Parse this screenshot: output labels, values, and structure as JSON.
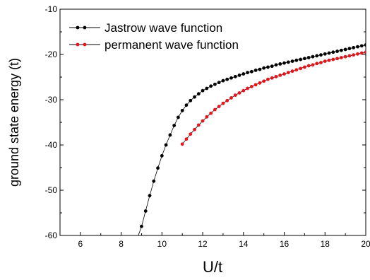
{
  "chart_data": {
    "type": "line",
    "xlabel": "U/t",
    "ylabel": "ground state energy (t)",
    "xlim": [
      5,
      20
    ],
    "ylim": [
      -60,
      -10
    ],
    "x_ticks": [
      6,
      8,
      10,
      12,
      14,
      16,
      18,
      20
    ],
    "y_ticks": [
      -60,
      -50,
      -40,
      -30,
      -20,
      -10
    ],
    "grid": false,
    "legend_position": "top-left",
    "series": [
      {
        "name": "Jastrow wave function",
        "color": "#000000",
        "marker": "circle",
        "points": [
          [
            8.8,
            -60.5
          ],
          [
            9.0,
            -58.0
          ],
          [
            9.2,
            -54.6
          ],
          [
            9.4,
            -51.2
          ],
          [
            9.6,
            -48.0
          ],
          [
            9.8,
            -45.1
          ],
          [
            10.0,
            -42.4
          ],
          [
            10.2,
            -40.0
          ],
          [
            10.4,
            -37.8
          ],
          [
            10.6,
            -35.7
          ],
          [
            10.8,
            -33.9
          ],
          [
            11.0,
            -32.4
          ],
          [
            11.2,
            -31.2
          ],
          [
            11.4,
            -30.2
          ],
          [
            11.6,
            -29.4
          ],
          [
            11.8,
            -28.7
          ],
          [
            12.0,
            -28.0
          ],
          [
            12.2,
            -27.5
          ],
          [
            12.4,
            -27.0
          ],
          [
            12.6,
            -26.6
          ],
          [
            12.8,
            -26.2
          ],
          [
            13.0,
            -25.8
          ],
          [
            13.2,
            -25.5
          ],
          [
            13.4,
            -25.2
          ],
          [
            13.6,
            -24.9
          ],
          [
            13.8,
            -24.6
          ],
          [
            14.0,
            -24.3
          ],
          [
            14.2,
            -24.0
          ],
          [
            14.4,
            -23.8
          ],
          [
            14.6,
            -23.5
          ],
          [
            14.8,
            -23.3
          ],
          [
            15.0,
            -23.0
          ],
          [
            15.2,
            -22.8
          ],
          [
            15.4,
            -22.6
          ],
          [
            15.6,
            -22.3
          ],
          [
            15.8,
            -22.1
          ],
          [
            16.0,
            -21.9
          ],
          [
            16.2,
            -21.7
          ],
          [
            16.4,
            -21.5
          ],
          [
            16.6,
            -21.3
          ],
          [
            16.8,
            -21.1
          ],
          [
            17.0,
            -20.9
          ],
          [
            17.2,
            -20.7
          ],
          [
            17.4,
            -20.5
          ],
          [
            17.6,
            -20.3
          ],
          [
            17.8,
            -20.1
          ],
          [
            18.0,
            -19.9
          ],
          [
            18.2,
            -19.7
          ],
          [
            18.4,
            -19.5
          ],
          [
            18.6,
            -19.3
          ],
          [
            18.8,
            -19.1
          ],
          [
            19.0,
            -18.9
          ],
          [
            19.2,
            -18.7
          ],
          [
            19.4,
            -18.5
          ],
          [
            19.6,
            -18.3
          ],
          [
            19.8,
            -18.1
          ],
          [
            20.0,
            -17.9
          ]
        ]
      },
      {
        "name": "permanent wave function",
        "color": "#e8141a",
        "marker": "circle",
        "points": [
          [
            11.0,
            -39.8
          ],
          [
            11.2,
            -38.7
          ],
          [
            11.4,
            -37.6
          ],
          [
            11.6,
            -36.6
          ],
          [
            11.8,
            -35.6
          ],
          [
            12.0,
            -34.7
          ],
          [
            12.2,
            -33.8
          ],
          [
            12.4,
            -33.0
          ],
          [
            12.6,
            -32.2
          ],
          [
            12.8,
            -31.5
          ],
          [
            13.0,
            -30.8
          ],
          [
            13.2,
            -30.2
          ],
          [
            13.4,
            -29.6
          ],
          [
            13.6,
            -29.0
          ],
          [
            13.8,
            -28.5
          ],
          [
            14.0,
            -28.0
          ],
          [
            14.2,
            -27.5
          ],
          [
            14.4,
            -27.1
          ],
          [
            14.6,
            -26.7
          ],
          [
            14.8,
            -26.3
          ],
          [
            15.0,
            -25.9
          ],
          [
            15.2,
            -25.5
          ],
          [
            15.4,
            -25.2
          ],
          [
            15.6,
            -24.9
          ],
          [
            15.8,
            -24.6
          ],
          [
            16.0,
            -24.3
          ],
          [
            16.2,
            -24.0
          ],
          [
            16.4,
            -23.7
          ],
          [
            16.6,
            -23.4
          ],
          [
            16.8,
            -23.1
          ],
          [
            17.0,
            -22.8
          ],
          [
            17.2,
            -22.5
          ],
          [
            17.4,
            -22.3
          ],
          [
            17.6,
            -22.0
          ],
          [
            17.8,
            -21.8
          ],
          [
            18.0,
            -21.5
          ],
          [
            18.2,
            -21.3
          ],
          [
            18.4,
            -21.1
          ],
          [
            18.6,
            -20.9
          ],
          [
            18.8,
            -20.7
          ],
          [
            19.0,
            -20.5
          ],
          [
            19.2,
            -20.3
          ],
          [
            19.4,
            -20.1
          ],
          [
            19.6,
            -19.9
          ],
          [
            19.8,
            -19.7
          ],
          [
            20.0,
            -19.5
          ]
        ]
      }
    ]
  }
}
